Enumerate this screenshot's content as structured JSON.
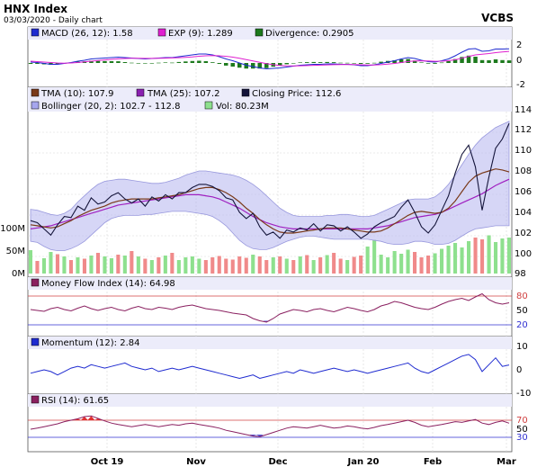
{
  "header": {
    "title": "HNX Index",
    "subtitle": "03/03/2020 - Daily chart",
    "brand": "VCBS"
  },
  "panels": {
    "macd": {
      "legend": [
        {
          "label": "MACD (26, 12): 1.58",
          "color": "#1f2bd0"
        },
        {
          "label": "EXP (9): 1.289",
          "color": "#e020d0"
        },
        {
          "label": "Divergence: 0.2905",
          "color": "#1d7a1d"
        }
      ],
      "yticks": [
        "2",
        "0",
        "-2"
      ]
    },
    "price": {
      "legend_row1": [
        {
          "label": "TMA (10): 107.9",
          "color": "#7a3a1a"
        },
        {
          "label": "TMA (25): 107.2",
          "color": "#8a20b0"
        },
        {
          "label": "Closing Price: 112.6",
          "color": "#14143a"
        }
      ],
      "legend_row2": [
        {
          "label": "Bollinger (20, 2): 102.7 - 112.8",
          "color": "#a6a6ee"
        },
        {
          "label": "Vol: 80.23M",
          "color": "#8ee08e"
        }
      ],
      "yticks": [
        "114",
        "112",
        "110",
        "108",
        "106",
        "104",
        "102",
        "100",
        "98"
      ],
      "vol_ticks": [
        "100M",
        "50M",
        "0M"
      ]
    },
    "mfi": {
      "legend": [
        {
          "label": "Money Flow Index (14): 64.98",
          "color": "#8a2060"
        }
      ],
      "yticks": [
        "80",
        "50",
        "20"
      ]
    },
    "momentum": {
      "legend": [
        {
          "label": "Momentum (12): 2.84",
          "color": "#1f2bd0"
        }
      ],
      "yticks": [
        "10",
        "0",
        "-10"
      ]
    },
    "rsi": {
      "legend": [
        {
          "label": "RSI (14): 61.65",
          "color": "#8a2060"
        }
      ],
      "yticks": [
        "70",
        "50",
        "30"
      ]
    },
    "xaxis": [
      "Oct 19",
      "Nov",
      "Dec",
      "Jan 20",
      "Feb",
      "Mar"
    ]
  },
  "chart_data": {
    "type": "line",
    "title": "HNX Index",
    "y_range": [
      98,
      114
    ],
    "series": [
      {
        "name": "Closing Price",
        "values": [
          103.2,
          103.0,
          102.4,
          101.8,
          102.8,
          103.6,
          103.5,
          104.6,
          104.2,
          105.4,
          104.8,
          105.0,
          105.6,
          105.9,
          105.3,
          104.9,
          105.3,
          104.6,
          105.5,
          105.1,
          105.7,
          105.3,
          105.9,
          105.9,
          106.4,
          106.7,
          106.7,
          106.5,
          106.1,
          105.4,
          105.2,
          104.0,
          103.4,
          103.9,
          102.6,
          101.8,
          102.1,
          101.5,
          102.3,
          102.1,
          102.5,
          102.3,
          102.9,
          102.2,
          102.8,
          102.7,
          102.2,
          102.6,
          102.1,
          101.5,
          101.9,
          102.6,
          103.0,
          103.3,
          103.6,
          104.5,
          105.2,
          104.0,
          102.6,
          102.0,
          102.8,
          104.2,
          105.6,
          107.8,
          109.6,
          110.5,
          108.4,
          104.2,
          107.4,
          110.2,
          111.1,
          112.6
        ]
      },
      {
        "name": "TMA (10)",
        "values": [
          102.8,
          102.7,
          102.6,
          102.5,
          102.6,
          102.9,
          103.2,
          103.6,
          103.9,
          104.2,
          104.4,
          104.6,
          104.9,
          105.1,
          105.2,
          105.3,
          105.3,
          105.3,
          105.3,
          105.4,
          105.5,
          105.6,
          105.7,
          105.9,
          106.1,
          106.3,
          106.4,
          106.4,
          106.2,
          105.9,
          105.5,
          105.0,
          104.4,
          103.9,
          103.3,
          102.8,
          102.4,
          102.1,
          102.0,
          102.0,
          102.1,
          102.2,
          102.3,
          102.4,
          102.5,
          102.5,
          102.5,
          102.4,
          102.3,
          102.2,
          102.1,
          102.1,
          102.2,
          102.5,
          102.9,
          103.3,
          103.7,
          104.0,
          104.1,
          104.0,
          103.9,
          104.0,
          104.4,
          105.1,
          106.0,
          106.9,
          107.5,
          107.8,
          108.0,
          108.2,
          108.1,
          107.9
        ]
      },
      {
        "name": "TMA (25)",
        "values": [
          102.4,
          102.5,
          102.6,
          102.7,
          102.9,
          103.1,
          103.3,
          103.5,
          103.7,
          103.9,
          104.1,
          104.3,
          104.5,
          104.7,
          104.8,
          104.9,
          105.0,
          105.1,
          105.2,
          105.3,
          105.4,
          105.5,
          105.6,
          105.7,
          105.7,
          105.7,
          105.6,
          105.5,
          105.3,
          105.0,
          104.7,
          104.4,
          104.0,
          103.6,
          103.3,
          103.0,
          102.8,
          102.6,
          102.5,
          102.4,
          102.4,
          102.4,
          102.4,
          102.4,
          102.4,
          102.4,
          102.4,
          102.4,
          102.4,
          102.4,
          102.4,
          102.5,
          102.6,
          102.7,
          102.9,
          103.1,
          103.3,
          103.5,
          103.6,
          103.7,
          103.8,
          104.0,
          104.3,
          104.6,
          104.9,
          105.2,
          105.5,
          105.8,
          106.2,
          106.6,
          106.9,
          107.2
        ]
      },
      {
        "name": "Bollinger Upper",
        "values": [
          104.3,
          104.2,
          104.0,
          103.8,
          103.7,
          103.9,
          104.3,
          105.0,
          105.6,
          106.2,
          106.7,
          107.0,
          107.1,
          107.2,
          107.2,
          107.1,
          107.0,
          106.9,
          106.8,
          106.8,
          106.9,
          107.1,
          107.3,
          107.6,
          107.8,
          108.0,
          108.0,
          107.9,
          107.8,
          107.7,
          107.6,
          107.4,
          107.1,
          106.7,
          106.2,
          105.6,
          105.0,
          104.4,
          104.0,
          103.7,
          103.6,
          103.6,
          103.6,
          103.6,
          103.7,
          103.7,
          103.8,
          103.8,
          103.7,
          103.6,
          103.6,
          103.7,
          104.0,
          104.3,
          104.6,
          104.9,
          105.2,
          105.3,
          105.3,
          105.3,
          105.5,
          106.0,
          106.7,
          107.6,
          108.6,
          109.6,
          110.5,
          111.2,
          111.7,
          112.2,
          112.5,
          112.8
        ]
      },
      {
        "name": "Bollinger Lower",
        "values": [
          101.2,
          101.1,
          100.7,
          100.4,
          100.3,
          100.3,
          100.5,
          100.8,
          101.2,
          101.8,
          102.4,
          103.0,
          103.4,
          103.6,
          103.7,
          103.7,
          103.7,
          103.8,
          103.8,
          103.9,
          104.0,
          104.1,
          104.1,
          104.1,
          104.0,
          103.9,
          103.8,
          103.6,
          103.2,
          102.7,
          102.0,
          101.3,
          100.8,
          100.5,
          100.4,
          100.4,
          100.6,
          100.9,
          101.2,
          101.4,
          101.6,
          101.7,
          101.7,
          101.6,
          101.5,
          101.4,
          101.4,
          101.4,
          101.4,
          101.4,
          101.4,
          101.3,
          101.2,
          101.0,
          100.9,
          100.9,
          101.0,
          101.2,
          101.2,
          101.1,
          100.9,
          100.9,
          101.0,
          101.3,
          101.7,
          102.1,
          102.4,
          102.5,
          102.6,
          102.7,
          102.7,
          102.7
        ]
      }
    ],
    "volume_millions": [
      52,
      28,
      34,
      48,
      43,
      38,
      30,
      36,
      33,
      40,
      46,
      38,
      34,
      42,
      40,
      50,
      38,
      33,
      30,
      36,
      40,
      46,
      30,
      36,
      38,
      33,
      30,
      36,
      39,
      33,
      31,
      38,
      35,
      42,
      38,
      30,
      36,
      38,
      33,
      30,
      38,
      41,
      30,
      36,
      41,
      46,
      33,
      30,
      37,
      40,
      60,
      75,
      42,
      36,
      50,
      44,
      53,
      48,
      36,
      40,
      45,
      55,
      62,
      68,
      58,
      72,
      80,
      76,
      85,
      70,
      78,
      80
    ],
    "volume_up": [
      true,
      false,
      true,
      true,
      false,
      true,
      false,
      true,
      false,
      true,
      false,
      true,
      true,
      false,
      true,
      false,
      true,
      false,
      true,
      false,
      true,
      false,
      true,
      true,
      true,
      true,
      false,
      false,
      false,
      false,
      false,
      false,
      false,
      true,
      false,
      false,
      true,
      false,
      true,
      false,
      true,
      false,
      true,
      false,
      true,
      false,
      false,
      true,
      false,
      false,
      true,
      true,
      true,
      true,
      true,
      true,
      true,
      false,
      false,
      false,
      true,
      true,
      true,
      true,
      true,
      true,
      false,
      false,
      true,
      true,
      true,
      true
    ],
    "macd": [
      0.1,
      0.05,
      -0.05,
      -0.15,
      -0.15,
      -0.05,
      0.05,
      0.2,
      0.3,
      0.45,
      0.5,
      0.55,
      0.6,
      0.65,
      0.6,
      0.55,
      0.5,
      0.45,
      0.5,
      0.55,
      0.6,
      0.6,
      0.7,
      0.8,
      0.9,
      1.0,
      1.0,
      0.9,
      0.7,
      0.45,
      0.25,
      0.0,
      -0.25,
      -0.4,
      -0.55,
      -0.65,
      -0.6,
      -0.55,
      -0.45,
      -0.35,
      -0.25,
      -0.2,
      -0.15,
      -0.15,
      -0.1,
      -0.1,
      -0.15,
      -0.15,
      -0.2,
      -0.3,
      -0.3,
      -0.2,
      -0.05,
      0.1,
      0.25,
      0.45,
      0.6,
      0.5,
      0.3,
      0.15,
      0.1,
      0.25,
      0.45,
      0.8,
      1.2,
      1.55,
      1.6,
      1.3,
      1.35,
      1.55,
      1.55,
      1.58
    ],
    "macd_signal": [
      0.2,
      0.15,
      0.1,
      0.05,
      0.0,
      -0.02,
      0.0,
      0.05,
      0.12,
      0.2,
      0.27,
      0.34,
      0.4,
      0.46,
      0.5,
      0.52,
      0.52,
      0.51,
      0.51,
      0.52,
      0.54,
      0.56,
      0.59,
      0.63,
      0.68,
      0.75,
      0.8,
      0.82,
      0.8,
      0.74,
      0.65,
      0.52,
      0.37,
      0.22,
      0.07,
      -0.08,
      -0.19,
      -0.27,
      -0.31,
      -0.32,
      -0.31,
      -0.29,
      -0.26,
      -0.24,
      -0.21,
      -0.19,
      -0.18,
      -0.17,
      -0.18,
      -0.2,
      -0.22,
      -0.22,
      -0.19,
      -0.13,
      -0.05,
      0.05,
      0.16,
      0.23,
      0.24,
      0.22,
      0.19,
      0.2,
      0.25,
      0.36,
      0.53,
      0.73,
      0.9,
      0.98,
      1.05,
      1.15,
      1.23,
      1.289
    ],
    "mfi": [
      50,
      48,
      46,
      52,
      55,
      50,
      47,
      53,
      58,
      52,
      48,
      52,
      55,
      50,
      47,
      53,
      57,
      52,
      50,
      55,
      53,
      50,
      55,
      58,
      60,
      56,
      52,
      50,
      48,
      45,
      42,
      40,
      38,
      30,
      25,
      22,
      30,
      40,
      45,
      50,
      48,
      45,
      50,
      52,
      48,
      45,
      50,
      55,
      52,
      48,
      45,
      50,
      58,
      62,
      68,
      65,
      60,
      55,
      52,
      50,
      55,
      62,
      68,
      72,
      75,
      70,
      78,
      85,
      72,
      65,
      62,
      64.98
    ],
    "momentum": [
      -2,
      -1,
      0,
      -1,
      -3,
      -1,
      1,
      2,
      1,
      3,
      2,
      1,
      2,
      3,
      4,
      2,
      1,
      0,
      1,
      -1,
      0,
      1,
      0,
      1,
      2,
      1,
      0,
      -1,
      -2,
      -3,
      -4,
      -5,
      -4,
      -3,
      -5,
      -4,
      -3,
      -2,
      -1,
      -2,
      0,
      -1,
      -2,
      -1,
      0,
      1,
      0,
      -1,
      0,
      -1,
      -2,
      -1,
      0,
      1,
      2,
      3,
      4,
      1,
      -1,
      -2,
      0,
      2,
      4,
      6,
      8,
      9,
      6,
      -1,
      3,
      7,
      2,
      2.84
    ],
    "rsi": [
      45,
      48,
      52,
      56,
      60,
      66,
      70,
      74,
      80,
      82,
      75,
      68,
      62,
      58,
      55,
      52,
      55,
      58,
      55,
      52,
      55,
      58,
      56,
      60,
      62,
      58,
      55,
      52,
      48,
      42,
      38,
      34,
      30,
      26,
      24,
      30,
      36,
      42,
      48,
      52,
      50,
      48,
      52,
      56,
      52,
      48,
      50,
      54,
      52,
      48,
      46,
      50,
      55,
      58,
      62,
      66,
      70,
      64,
      56,
      52,
      55,
      58,
      62,
      66,
      64,
      68,
      72,
      62,
      58,
      64,
      68,
      61.65
    ]
  }
}
